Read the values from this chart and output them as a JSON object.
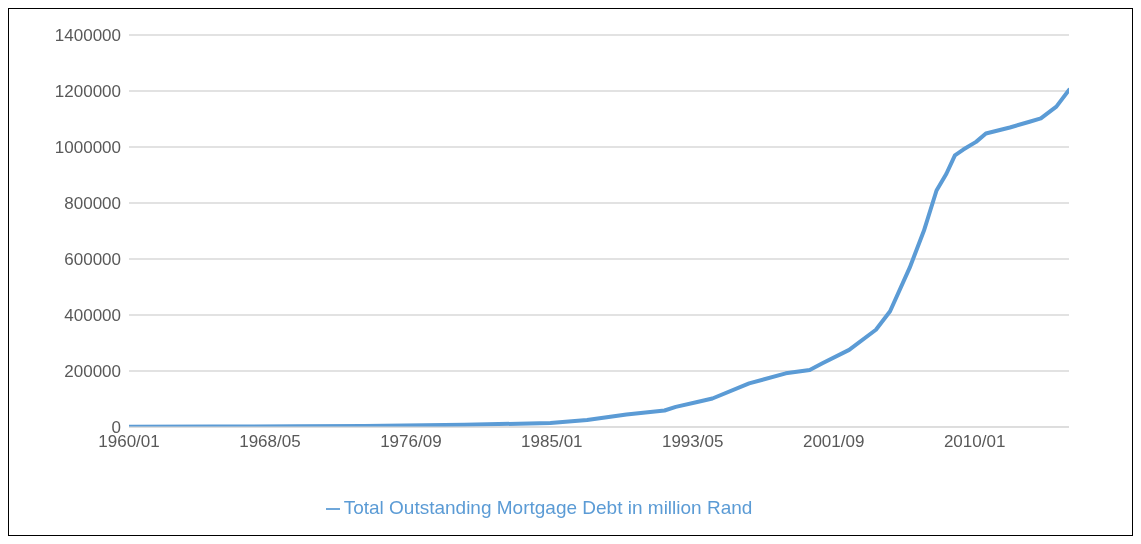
{
  "chart_data": {
    "type": "line",
    "x": [
      "1960-01",
      "1965-01",
      "1970-01",
      "1973-12",
      "1979-11",
      "1984-12",
      "1987-02",
      "1989-06",
      "1991-09",
      "1992-05",
      "1993-09",
      "1994-07",
      "1996-09",
      "1998-11",
      "2000-04",
      "2001-01",
      "2002-08",
      "2004-03",
      "2005-01",
      "2006-03",
      "2007-01",
      "2007-10",
      "2008-05",
      "2008-11",
      "2009-05",
      "2010-02",
      "2010-09",
      "2012-02",
      "2013-04",
      "2013-12",
      "2014-11",
      "2015-08"
    ],
    "series": [
      {
        "name": "Total Outstanding Mortgage Debt in million Rand",
        "color": "#5b9bd5",
        "values": [
          1000,
          1500,
          2500,
          4000,
          8000,
          14000,
          25000,
          45000,
          59000,
          71900,
          90000,
          101800,
          155700,
          191700,
          203700,
          227600,
          275500,
          347400,
          413300,
          569000,
          700800,
          844600,
          904500,
          970400,
          990800,
          1018300,
          1048300,
          1069800,
          1090200,
          1102000,
          1144100,
          1204000
        ]
      }
    ],
    "xlim": [
      "1960-01",
      "2015-08"
    ],
    "xticks": [
      {
        "value": "1960-01",
        "label": "1960/01"
      },
      {
        "value": "1968-05",
        "label": "1968/05"
      },
      {
        "value": "1976-09",
        "label": "1976/09"
      },
      {
        "value": "1985-01",
        "label": "1985/01"
      },
      {
        "value": "1993-05",
        "label": "1993/05"
      },
      {
        "value": "2001-09",
        "label": "2001/09"
      },
      {
        "value": "2010-01",
        "label": "2010/01"
      }
    ],
    "ylim": [
      0,
      1400000
    ],
    "yticks": [
      0,
      200000,
      400000,
      600000,
      800000,
      1000000,
      1200000,
      1400000
    ],
    "grid": "y",
    "legend": "bottom",
    "marker": "none",
    "line_style": "solid"
  }
}
